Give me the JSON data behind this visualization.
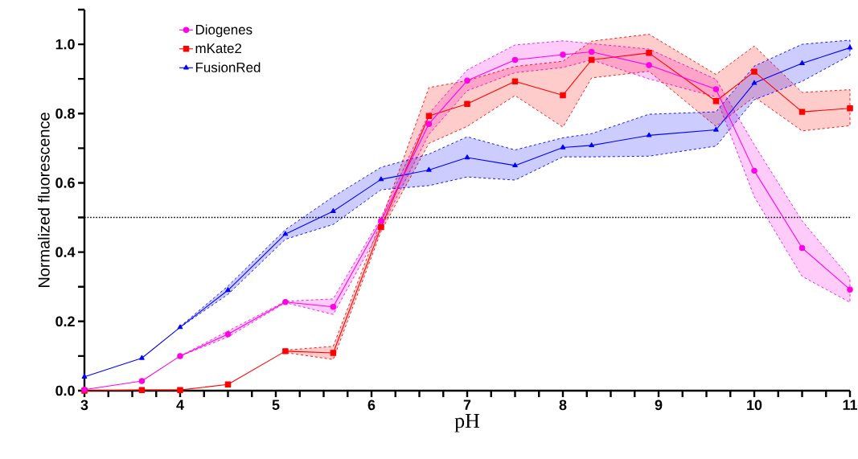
{
  "chart_data": {
    "type": "line",
    "xlabel": "pH",
    "ylabel": "Normalized fluorescence",
    "x": [
      3,
      3.6,
      4,
      4.5,
      5.1,
      5.6,
      6.1,
      6.6,
      7,
      7.5,
      8,
      8.3,
      8.9,
      9.6,
      10,
      10.5,
      11
    ],
    "series": [
      {
        "name": "Diogenes",
        "color": "#ff00e6",
        "marker": "circle",
        "values": [
          0.003,
          0.028,
          0.1,
          0.163,
          0.256,
          0.242,
          0.49,
          0.77,
          0.895,
          0.955,
          0.97,
          0.978,
          0.94,
          0.87,
          0.635,
          0.412,
          0.292
        ],
        "lower": [
          null,
          null,
          0.1,
          0.155,
          0.254,
          0.22,
          0.47,
          0.74,
          0.866,
          0.918,
          0.933,
          0.955,
          0.9,
          0.848,
          0.56,
          0.33,
          0.255
        ],
        "upper": [
          null,
          null,
          0.1,
          0.172,
          0.258,
          0.265,
          0.5,
          0.8,
          0.926,
          0.998,
          1.01,
          1.002,
          0.986,
          0.899,
          0.71,
          0.49,
          0.325
        ]
      },
      {
        "name": "mKate2",
        "color": "#ff0000",
        "marker": "square",
        "values": [
          0.0,
          0.002,
          0.002,
          0.018,
          0.114,
          0.109,
          0.472,
          0.793,
          0.828,
          0.893,
          0.853,
          0.955,
          0.975,
          0.836,
          0.921,
          0.805,
          0.815
        ],
        "lower": [
          null,
          null,
          null,
          null,
          0.11,
          0.09,
          0.46,
          0.714,
          0.763,
          0.852,
          0.761,
          0.903,
          0.922,
          0.763,
          0.848,
          0.75,
          0.765
        ],
        "upper": [
          null,
          null,
          null,
          null,
          0.117,
          0.128,
          0.49,
          0.875,
          0.895,
          0.936,
          0.951,
          1.009,
          1.029,
          0.913,
          0.995,
          0.861,
          0.869
        ]
      },
      {
        "name": "FusionRed",
        "color": "#0000ff",
        "marker": "triangle",
        "values": [
          0.04,
          0.094,
          0.183,
          0.29,
          0.452,
          0.518,
          0.61,
          0.637,
          0.673,
          0.65,
          0.702,
          0.708,
          0.737,
          0.753,
          0.888,
          0.945,
          0.99
        ],
        "lower": [
          null,
          null,
          0.183,
          0.278,
          0.437,
          0.48,
          0.58,
          0.592,
          0.617,
          0.608,
          0.675,
          0.675,
          0.677,
          0.706,
          0.84,
          0.893,
          0.968
        ],
        "upper": [
          null,
          null,
          0.185,
          0.302,
          0.465,
          0.56,
          0.645,
          0.683,
          0.733,
          0.695,
          0.73,
          0.742,
          0.798,
          0.805,
          0.937,
          1.0,
          1.012
        ]
      }
    ],
    "xlim": [
      3,
      11
    ],
    "xticks": [
      3,
      {
        "value": 3.25,
        "label": null
      },
      {
        "value": 3.5,
        "label": null
      },
      {
        "value": 3.75,
        "label": null
      },
      4,
      {
        "value": 4.25,
        "label": null
      },
      {
        "value": 4.5,
        "label": null
      },
      {
        "value": 4.75,
        "label": null
      },
      5,
      {
        "value": 5.25,
        "label": null
      },
      {
        "value": 5.5,
        "label": null
      },
      {
        "value": 5.75,
        "label": null
      },
      6,
      {
        "value": 6.25,
        "label": null
      },
      {
        "value": 6.5,
        "label": null
      },
      {
        "value": 6.75,
        "label": null
      },
      7,
      {
        "value": 7.25,
        "label": null
      },
      {
        "value": 7.5,
        "label": null
      },
      {
        "value": 7.75,
        "label": null
      },
      8,
      {
        "value": 8.25,
        "label": null
      },
      {
        "value": 8.5,
        "label": null
      },
      {
        "value": 8.75,
        "label": null
      },
      9,
      {
        "value": 9.25,
        "label": null
      },
      {
        "value": 9.5,
        "label": null
      },
      {
        "value": 9.75,
        "label": null
      },
      10,
      {
        "value": 10.25,
        "label": null
      },
      {
        "value": 10.5,
        "label": null
      },
      {
        "value": 10.75,
        "label": null
      },
      11
    ],
    "ylim": [
      0,
      1.1
    ],
    "yticks": [
      {
        "value": 0,
        "label": "0.0"
      },
      {
        "value": 0.1,
        "label": null
      },
      {
        "value": 0.2,
        "label": "0.2"
      },
      {
        "value": 0.3,
        "label": null
      },
      {
        "value": 0.4,
        "label": "0.4"
      },
      {
        "value": 0.5,
        "label": null
      },
      {
        "value": 0.6,
        "label": "0.6"
      },
      {
        "value": 0.7,
        "label": null
      },
      {
        "value": 0.8,
        "label": "0.8"
      },
      {
        "value": 0.9,
        "label": null
      },
      {
        "value": 1.0,
        "label": "1.0"
      },
      {
        "value": 1.1,
        "label": null
      }
    ],
    "ref_lines": [
      {
        "axis": "y",
        "value": 0.5,
        "color": "#000000",
        "line_style": "dotted"
      }
    ],
    "grid": false,
    "legend": "top left",
    "line_style": "solid"
  }
}
